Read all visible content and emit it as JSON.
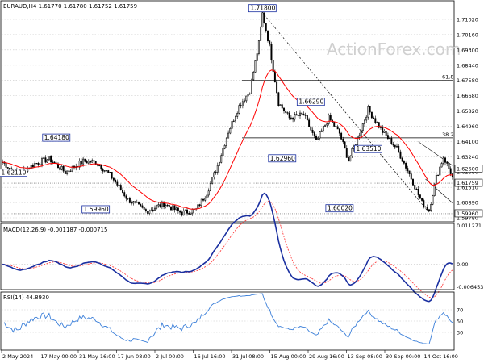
{
  "chart_data": [
    {
      "type": "candlestick",
      "title": "EURAUD,H4  1.61770 1.61780 1.61752 1.61759",
      "watermark": "ActionForex.com",
      "ylim": [
        1.5953,
        1.7245
      ],
      "y_ticks": [
        "1.71020",
        "1.70160",
        "1.69300",
        "1.68440",
        "1.67580",
        "1.66680",
        "1.65820",
        "1.64960",
        "1.64100",
        "1.63240",
        "1.62380",
        "1.61510",
        "1.60890",
        "1.59780"
      ],
      "price_badges": [
        "1.62600",
        "1.61759",
        "1.59960"
      ],
      "fib_labels": [
        "61.8",
        "38.2"
      ],
      "fib_levels": [
        1.6781,
        1.6443
      ],
      "levels": [
        {
          "label": "1.71800",
          "price": 1.718
        },
        {
          "label": "1.64180",
          "price": 1.6418
        },
        {
          "label": "1.62110",
          "price": 1.6211
        },
        {
          "label": "1.59960",
          "price": 1.5996
        },
        {
          "label": "1.66290",
          "price": 1.6629
        },
        {
          "label": "1.62960",
          "price": 1.6296
        },
        {
          "label": "1.63510",
          "price": 1.6351
        },
        {
          "label": "1.60020",
          "price": 1.6002
        }
      ],
      "x_labels": [
        "2 May 2024",
        "17 May 00:00",
        "31 May 16:00",
        "17 Jun 08:00",
        "2 Jul 00:00",
        "16 Jul 16:00",
        "31 Jul 08:00",
        "15 Aug 00:00",
        "29 Aug 16:00",
        "13 Sep 08:00",
        "30 Sep 00:00",
        "14 Oct 16:00"
      ]
    },
    {
      "type": "line",
      "title": "MACD(12,26,9) -0.001187 -0.000715",
      "ylim": [
        -0.007,
        0.0115
      ],
      "y_ticks": [
        "0.011271",
        "0.00",
        "-0.006453"
      ]
    },
    {
      "type": "line",
      "title": "RSI(14) 44.8930",
      "ylim": [
        0,
        100
      ],
      "y_ticks": [
        "70",
        "50",
        "30"
      ]
    }
  ],
  "colors": {
    "ma": "#ff0000",
    "macd": "#1a2fa0",
    "signal": "#ff4040",
    "rsi": "#3b7fd9",
    "level": "#1a2fa0"
  }
}
